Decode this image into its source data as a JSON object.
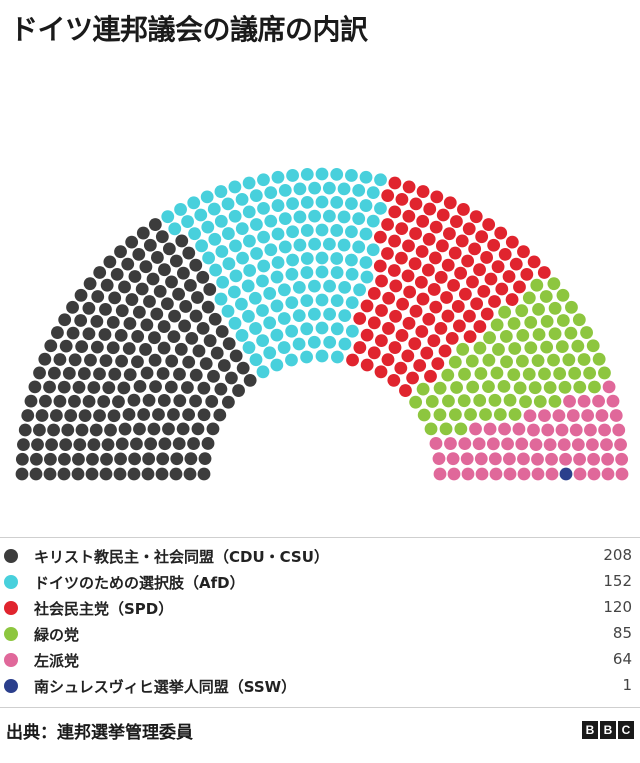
{
  "title": "ドイツ連邦議会の議席の内訳",
  "chart_data": {
    "type": "parliament",
    "title": "ドイツ連邦議会の議席の内訳",
    "total_seats": 630,
    "series": [
      {
        "name": "キリスト教民主・社会同盟（CDU・CSU）",
        "value": 208,
        "color": "#3c3c3c"
      },
      {
        "name": "ドイツのための選択肢（AfD）",
        "value": 152,
        "color": "#48d0dc"
      },
      {
        "name": "社会民主党（SPD）",
        "value": 120,
        "color": "#e0242e"
      },
      {
        "name": "緑の党",
        "value": 85,
        "color": "#8dc63f"
      },
      {
        "name": "左派党",
        "value": 64,
        "color": "#e0689a"
      },
      {
        "name": "南シュレスヴィヒ選挙人同盟（SSW）",
        "value": 1,
        "color": "#2b3f8c"
      }
    ],
    "values_text": [
      "208",
      "152",
      "120",
      "85",
      "64",
      "1"
    ]
  },
  "source": "出典：連邦選挙管理委員",
  "logo": [
    "B",
    "B",
    "C"
  ]
}
